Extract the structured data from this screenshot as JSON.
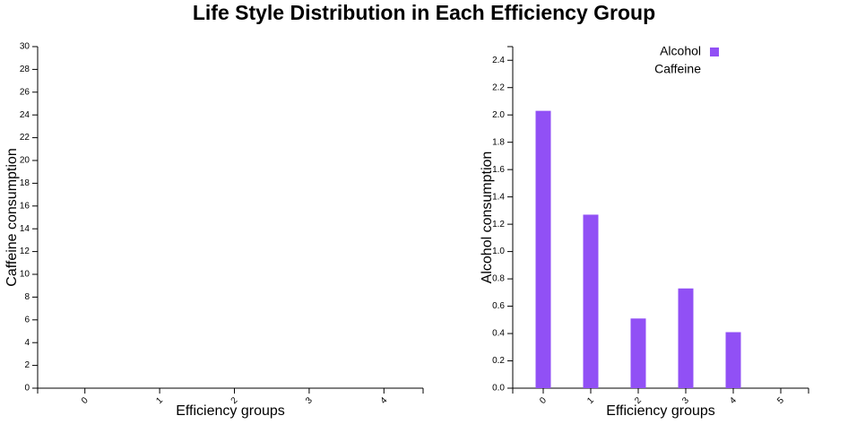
{
  "title": "Life Style Distribution in Each Efficiency Group",
  "chart_data": [
    {
      "type": "bar",
      "x_label": "Efficiency groups",
      "y_label": "Caffeine consumption",
      "categories": [
        "0",
        "1",
        "2",
        "3",
        "4"
      ],
      "series": [
        {
          "name": "Caffeine",
          "color": null,
          "values": [
            null,
            null,
            null,
            null,
            null
          ]
        }
      ],
      "ylim": [
        0,
        30
      ],
      "yticks": [
        0,
        2,
        4,
        6,
        8,
        10,
        12,
        14,
        16,
        18,
        20,
        22,
        24,
        26,
        28,
        30
      ]
    },
    {
      "type": "bar",
      "x_label": "Efficiency groups",
      "y_label": "Alcohol consumption",
      "categories": [
        "0",
        "1",
        "2",
        "3",
        "4",
        "5"
      ],
      "series": [
        {
          "name": "Alcohol",
          "color": "#9150f5",
          "values": [
            2.03,
            1.27,
            0.51,
            0.73,
            0.41,
            null
          ]
        },
        {
          "name": "Caffeine",
          "color": null,
          "values": [
            null,
            null,
            null,
            null,
            null,
            null
          ]
        }
      ],
      "legend": "top-right",
      "ylim": [
        0,
        2.5
      ],
      "yticks": [
        {
          "value": 0,
          "label": "0.0"
        },
        {
          "value": 0.2,
          "label": "0.2"
        },
        {
          "value": 0.4,
          "label": "0.4"
        },
        {
          "value": 0.6,
          "label": "0.6"
        },
        {
          "value": 0.8,
          "label": "0.8"
        },
        {
          "value": 1,
          "label": "1.0"
        },
        {
          "value": 1.2,
          "label": "1.2"
        },
        {
          "value": 1.4,
          "label": "1.4"
        },
        {
          "value": 1.6,
          "label": "1.6"
        },
        {
          "value": 1.8,
          "label": "1.8"
        },
        {
          "value": 2,
          "label": "2.0"
        },
        {
          "value": 2.2,
          "label": "2.2"
        },
        {
          "value": 2.4,
          "label": "2.4"
        }
      ]
    }
  ]
}
